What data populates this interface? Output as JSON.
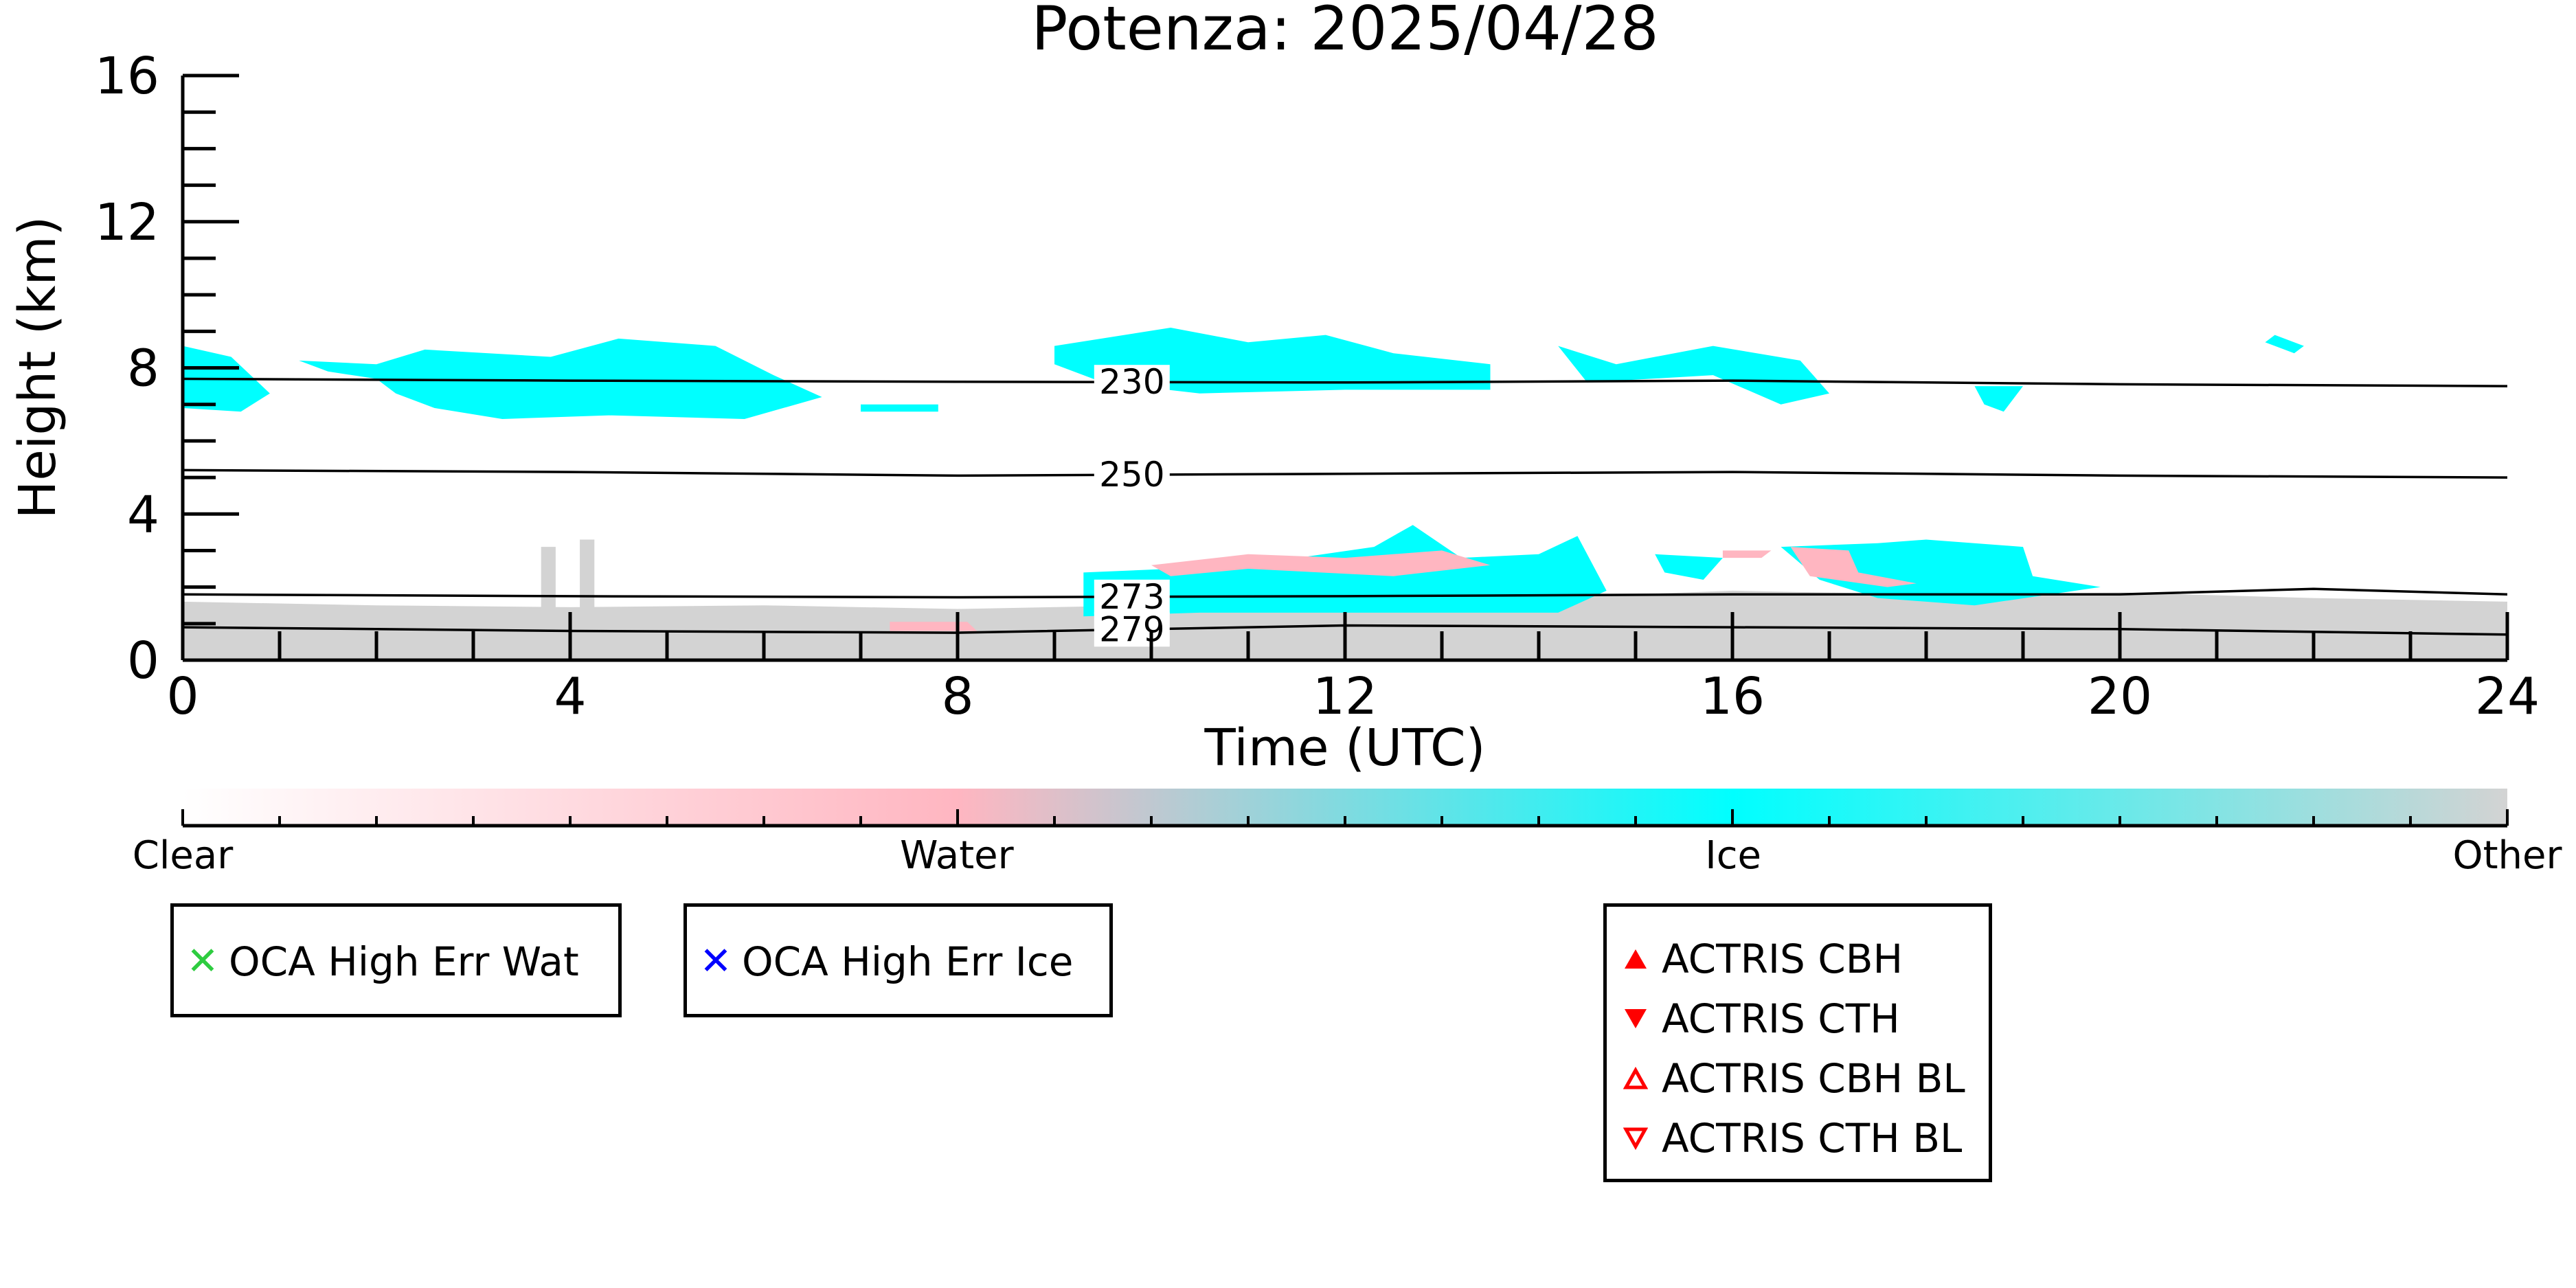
{
  "chart_data": {
    "type": "heatmap",
    "title": "Potenza: 2025/04/28",
    "xlabel": "Time (UTC)",
    "ylabel": "Height (km)",
    "xlim": [
      0,
      24
    ],
    "ylim": [
      0,
      16
    ],
    "x_ticks": [
      0,
      4,
      8,
      12,
      16,
      20,
      24
    ],
    "y_ticks": [
      0,
      4,
      8,
      12,
      16
    ],
    "categories": [
      "Clear",
      "Water",
      "Ice",
      "Other"
    ],
    "colors": {
      "clear": "#ffffff",
      "water": "#ffb6c1",
      "ice": "#00ffff",
      "other": "#d3d3d3",
      "contour": "#000000"
    },
    "contours": [
      {
        "label": "230",
        "points": [
          [
            0,
            7.7
          ],
          [
            4,
            7.65
          ],
          [
            8,
            7.62
          ],
          [
            12,
            7.6
          ],
          [
            16,
            7.65
          ],
          [
            20,
            7.55
          ],
          [
            24,
            7.5
          ]
        ]
      },
      {
        "label": "250",
        "points": [
          [
            0,
            5.2
          ],
          [
            4,
            5.15
          ],
          [
            8,
            5.05
          ],
          [
            12,
            5.1
          ],
          [
            16,
            5.15
          ],
          [
            20,
            5.05
          ],
          [
            24,
            5.0
          ]
        ]
      },
      {
        "label": "273",
        "points": [
          [
            0,
            1.8
          ],
          [
            4,
            1.75
          ],
          [
            8,
            1.72
          ],
          [
            12,
            1.75
          ],
          [
            16,
            1.8
          ],
          [
            20,
            1.8
          ],
          [
            22,
            1.95
          ],
          [
            24,
            1.8
          ]
        ]
      },
      {
        "label": "279",
        "points": [
          [
            0,
            0.9
          ],
          [
            4,
            0.8
          ],
          [
            8,
            0.75
          ],
          [
            12,
            0.95
          ],
          [
            16,
            0.9
          ],
          [
            20,
            0.85
          ],
          [
            24,
            0.7
          ]
        ]
      }
    ],
    "regions": [
      {
        "class": "ice",
        "points": [
          [
            0,
            8.6
          ],
          [
            0.5,
            8.3
          ],
          [
            0.9,
            7.3
          ],
          [
            0.6,
            6.8
          ],
          [
            0,
            6.9
          ]
        ]
      },
      {
        "class": "ice",
        "points": [
          [
            1.2,
            8.2
          ],
          [
            2.0,
            8.1
          ],
          [
            2.5,
            8.5
          ],
          [
            3.8,
            8.3
          ],
          [
            4.5,
            8.8
          ],
          [
            5.5,
            8.6
          ],
          [
            6.1,
            7.8
          ],
          [
            6.6,
            7.2
          ],
          [
            5.8,
            6.6
          ],
          [
            4.4,
            6.7
          ],
          [
            3.3,
            6.6
          ],
          [
            2.6,
            6.9
          ],
          [
            2.2,
            7.3
          ],
          [
            2.0,
            7.7
          ],
          [
            1.5,
            7.9
          ]
        ]
      },
      {
        "class": "ice",
        "points": [
          [
            7.0,
            7.0
          ],
          [
            7.8,
            7.0
          ],
          [
            7.8,
            6.8
          ],
          [
            7.0,
            6.8
          ]
        ]
      },
      {
        "class": "ice",
        "points": [
          [
            9.0,
            8.6
          ],
          [
            10.2,
            9.1
          ],
          [
            11.0,
            8.7
          ],
          [
            11.8,
            8.9
          ],
          [
            12.5,
            8.4
          ],
          [
            13.5,
            8.1
          ],
          [
            13.5,
            7.4
          ],
          [
            12.0,
            7.4
          ],
          [
            10.5,
            7.3
          ],
          [
            9.5,
            7.6
          ],
          [
            9.0,
            8.1
          ]
        ]
      },
      {
        "class": "ice",
        "points": [
          [
            14.2,
            8.6
          ],
          [
            14.8,
            8.1
          ],
          [
            15.8,
            8.6
          ],
          [
            16.7,
            8.2
          ],
          [
            17.0,
            7.3
          ],
          [
            16.5,
            7.0
          ],
          [
            15.8,
            7.8
          ],
          [
            14.5,
            7.6
          ]
        ]
      },
      {
        "class": "ice",
        "points": [
          [
            18.5,
            7.5
          ],
          [
            19.0,
            7.5
          ],
          [
            18.8,
            6.8
          ],
          [
            18.6,
            7.0
          ]
        ]
      },
      {
        "class": "ice",
        "points": [
          [
            21.6,
            8.9
          ],
          [
            21.9,
            8.6
          ],
          [
            21.8,
            8.4
          ],
          [
            21.5,
            8.7
          ]
        ]
      },
      {
        "class": "other",
        "points": [
          [
            0,
            1.6
          ],
          [
            2,
            1.5
          ],
          [
            4,
            1.45
          ],
          [
            6,
            1.5
          ],
          [
            8,
            1.4
          ],
          [
            10,
            1.5
          ],
          [
            12,
            1.6
          ],
          [
            14,
            1.7
          ],
          [
            16,
            1.9
          ],
          [
            18,
            1.8
          ],
          [
            20,
            1.85
          ],
          [
            22,
            1.7
          ],
          [
            24,
            1.6
          ],
          [
            24,
            0
          ],
          [
            0,
            0
          ]
        ]
      },
      {
        "class": "other",
        "points": [
          [
            3.7,
            3.1
          ],
          [
            3.85,
            3.1
          ],
          [
            3.85,
            1.4
          ],
          [
            3.7,
            1.4
          ]
        ]
      },
      {
        "class": "other",
        "points": [
          [
            4.1,
            3.3
          ],
          [
            4.25,
            3.3
          ],
          [
            4.25,
            1.4
          ],
          [
            4.1,
            1.4
          ]
        ]
      },
      {
        "class": "ice",
        "points": [
          [
            9.3,
            2.4
          ],
          [
            10.2,
            2.5
          ],
          [
            11.0,
            2.6
          ],
          [
            12.3,
            3.1
          ],
          [
            12.7,
            3.7
          ],
          [
            13.2,
            2.8
          ],
          [
            14.0,
            2.9
          ],
          [
            14.4,
            3.4
          ],
          [
            14.7,
            1.9
          ],
          [
            14.2,
            1.3
          ],
          [
            12.0,
            1.3
          ],
          [
            10.5,
            1.3
          ],
          [
            9.3,
            1.2
          ]
        ]
      },
      {
        "class": "water",
        "points": [
          [
            10.0,
            2.6
          ],
          [
            11.0,
            2.9
          ],
          [
            12.0,
            2.8
          ],
          [
            13.0,
            3.0
          ],
          [
            13.5,
            2.6
          ],
          [
            12.5,
            2.3
          ],
          [
            11.0,
            2.5
          ],
          [
            10.2,
            2.3
          ]
        ]
      },
      {
        "class": "ice",
        "points": [
          [
            15.2,
            2.9
          ],
          [
            15.9,
            2.8
          ],
          [
            15.7,
            2.2
          ],
          [
            15.3,
            2.4
          ]
        ]
      },
      {
        "class": "water",
        "points": [
          [
            15.9,
            3.0
          ],
          [
            16.4,
            3.0
          ],
          [
            16.3,
            2.8
          ],
          [
            15.9,
            2.8
          ]
        ]
      },
      {
        "class": "ice",
        "points": [
          [
            16.5,
            3.1
          ],
          [
            17.5,
            3.2
          ],
          [
            18.0,
            3.3
          ],
          [
            19.0,
            3.1
          ],
          [
            19.1,
            2.3
          ],
          [
            19.8,
            2.0
          ],
          [
            18.5,
            1.5
          ],
          [
            17.5,
            1.7
          ],
          [
            16.9,
            2.2
          ]
        ]
      },
      {
        "class": "water",
        "points": [
          [
            16.6,
            3.1
          ],
          [
            17.2,
            3.0
          ],
          [
            17.3,
            2.4
          ],
          [
            17.9,
            2.1
          ],
          [
            17.6,
            2.0
          ],
          [
            16.8,
            2.3
          ]
        ]
      },
      {
        "class": "water",
        "points": [
          [
            7.3,
            1.05
          ],
          [
            8.1,
            1.05
          ],
          [
            8.2,
            0.8
          ],
          [
            7.3,
            0.8
          ]
        ]
      }
    ]
  },
  "colorbar": {
    "labels": [
      {
        "text": "Clear",
        "pos": 0
      },
      {
        "text": "Water",
        "pos": 0.333
      },
      {
        "text": "Ice",
        "pos": 0.667
      },
      {
        "text": "Other",
        "pos": 1
      }
    ],
    "stops": [
      {
        "pos": 0,
        "color": "#ffffff"
      },
      {
        "pos": 0.333,
        "color": "#ffb6c1"
      },
      {
        "pos": 0.667,
        "color": "#00ffff"
      },
      {
        "pos": 1,
        "color": "#d3d3d3"
      }
    ]
  },
  "legend": {
    "oca_water": {
      "label": "OCA High Err Wat",
      "color": "#2ecc40"
    },
    "oca_ice": {
      "label": "OCA High Err Ice",
      "color": "#0000ff"
    },
    "actris": [
      {
        "label": "ACTRIS CBH",
        "marker": "triangle-up-filled",
        "color": "#ff0000"
      },
      {
        "label": "ACTRIS CTH",
        "marker": "triangle-down-filled",
        "color": "#ff0000"
      },
      {
        "label": "ACTRIS CBH BL",
        "marker": "triangle-up-open",
        "color": "#ff0000"
      },
      {
        "label": "ACTRIS CTH BL",
        "marker": "triangle-down-open",
        "color": "#ff0000"
      }
    ]
  }
}
